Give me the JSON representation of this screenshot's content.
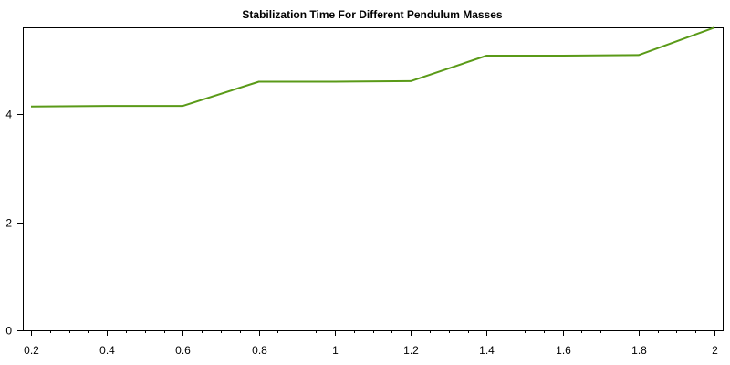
{
  "chart_data": {
    "type": "line",
    "title": "Stabilization Time For Different Pendulum Masses",
    "xlabel": "",
    "ylabel": "",
    "x": [
      0.2,
      0.4,
      0.6,
      0.8,
      1.0,
      1.2,
      1.4,
      1.6,
      1.8,
      2.0
    ],
    "series": [
      {
        "values": [
          4.14,
          4.15,
          4.15,
          4.6,
          4.6,
          4.61,
          5.08,
          5.08,
          5.09,
          5.6
        ]
      }
    ],
    "xlim": [
      0.2,
      2.0
    ],
    "ylim": [
      0,
      5.6
    ],
    "x_ticks": [
      "0.2",
      "0.4",
      "0.6",
      "0.8",
      "1",
      "1.2",
      "1.4",
      "1.6",
      "1.8",
      "2"
    ],
    "y_ticks": [
      "0",
      "2",
      "4"
    ],
    "line_color": "#5a9a18",
    "grid": false,
    "legend": "none"
  }
}
